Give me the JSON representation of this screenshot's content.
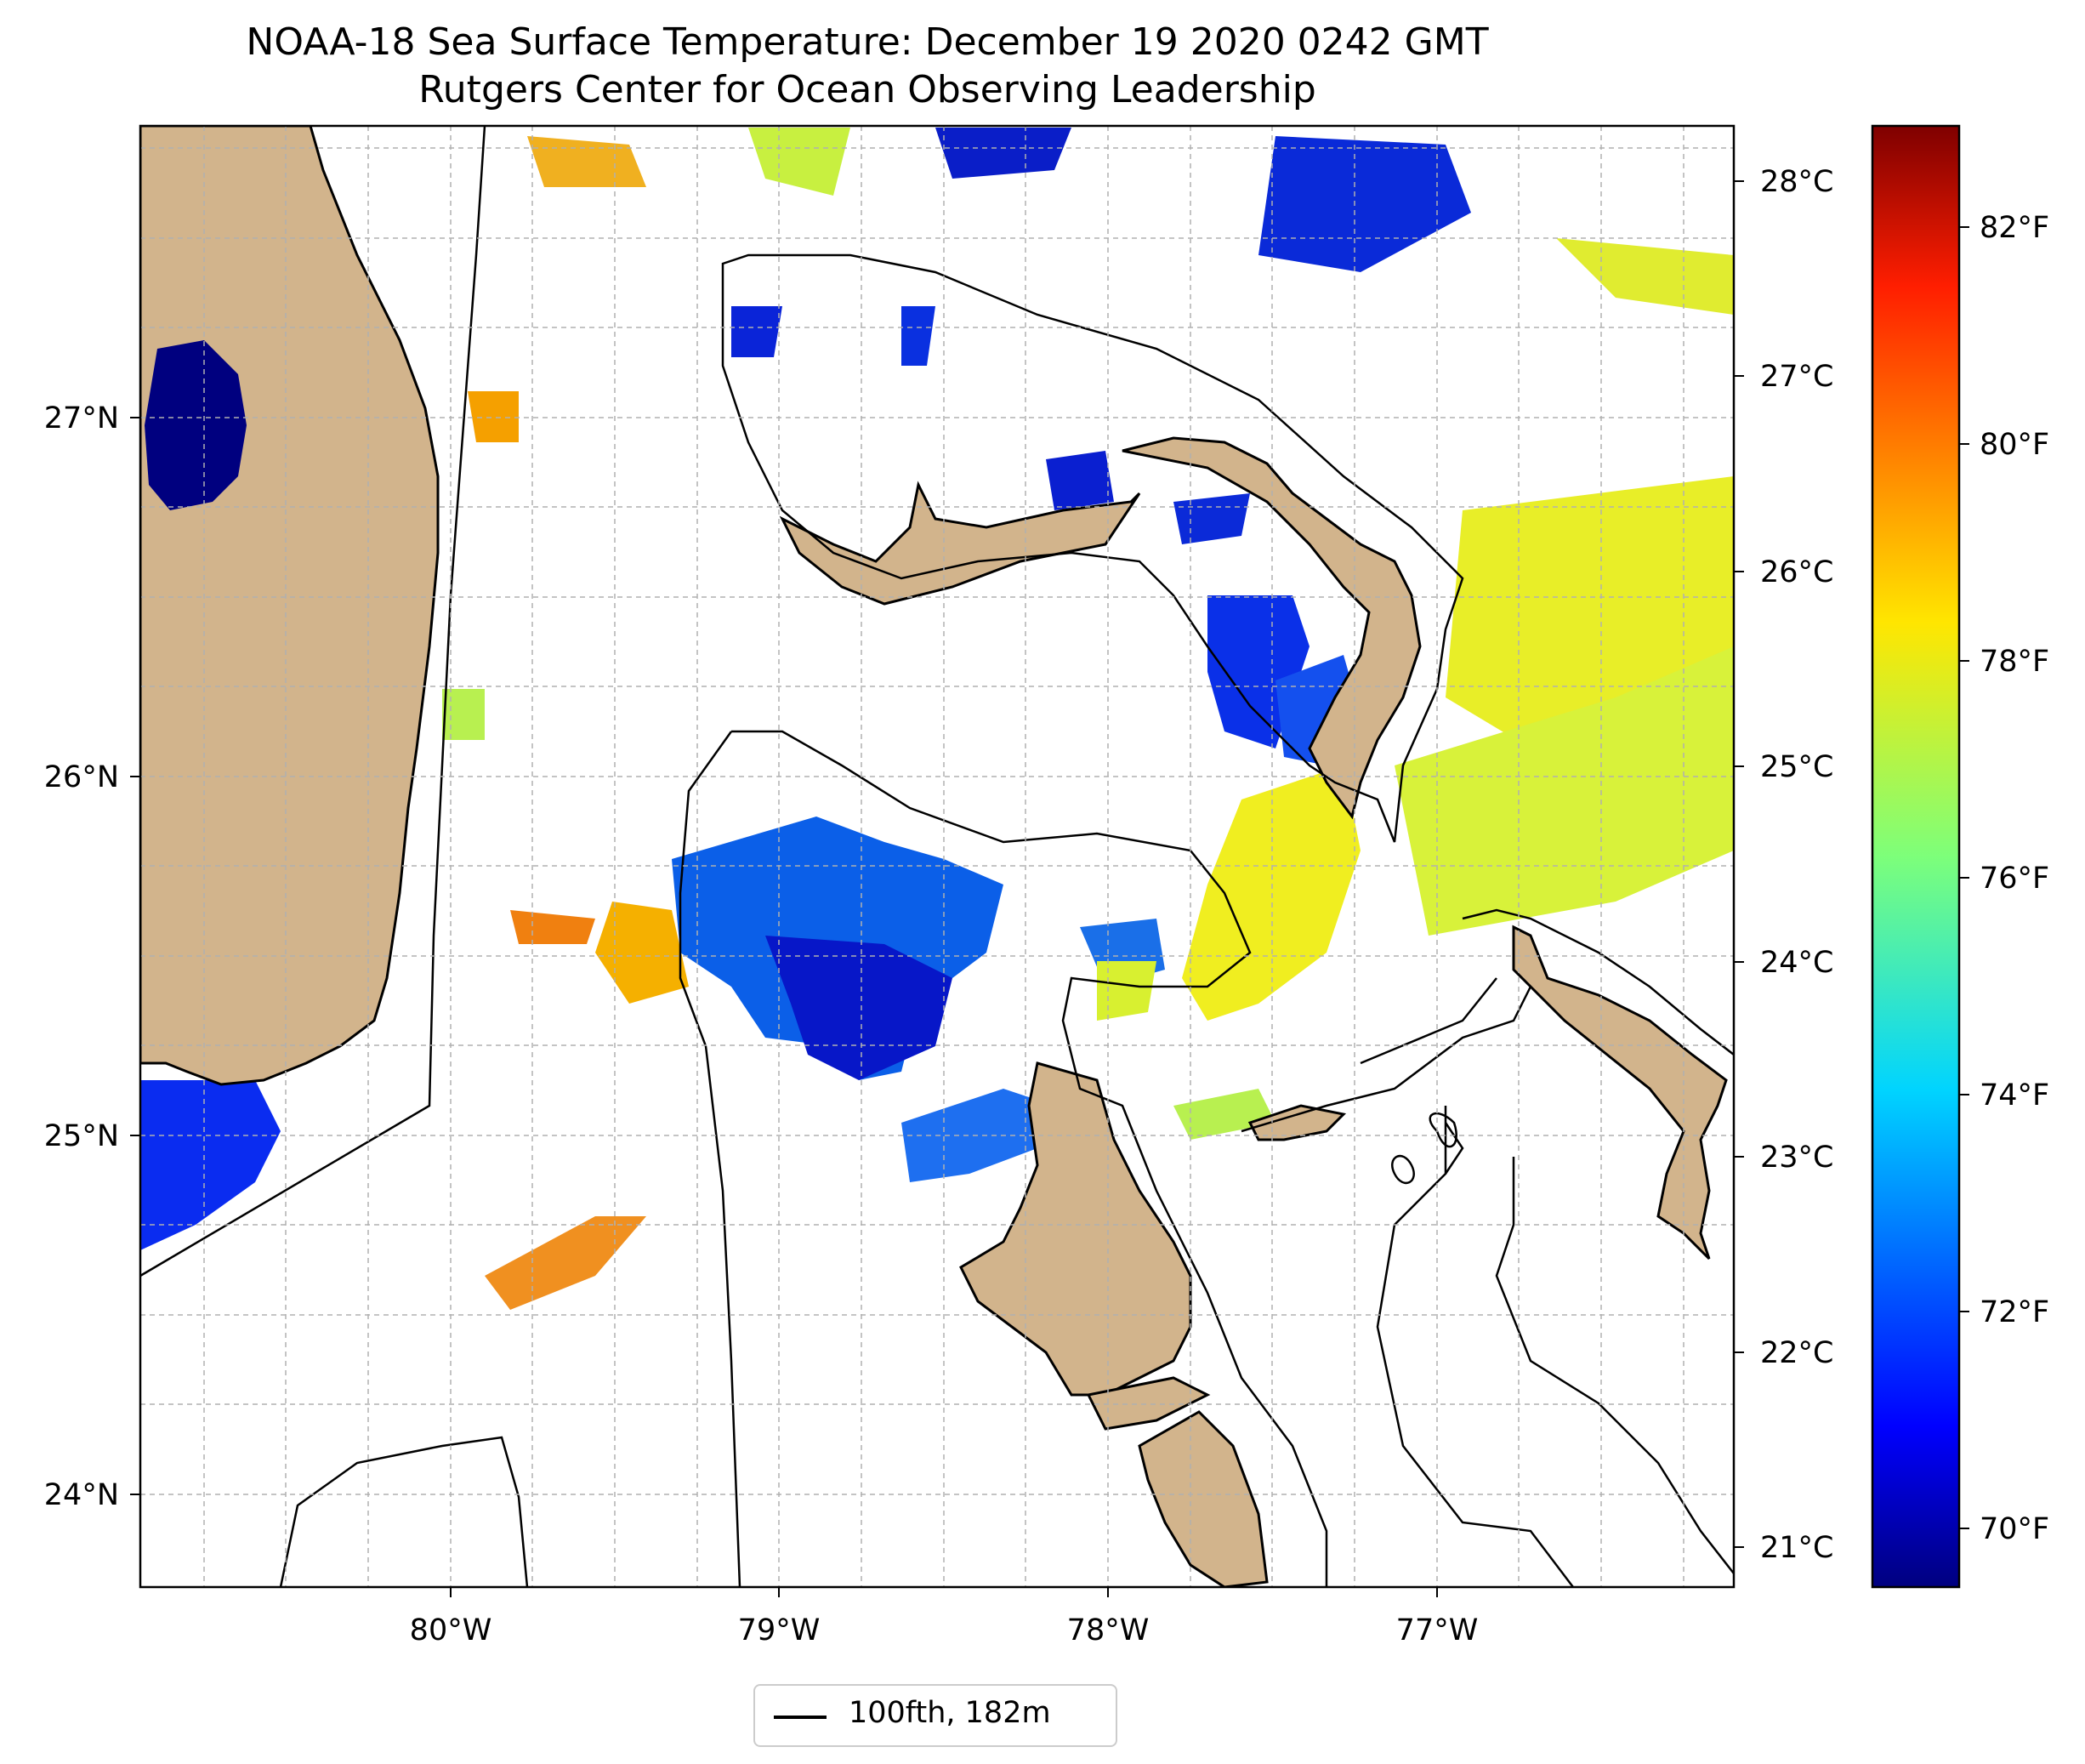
{
  "title": {
    "line1": "NOAA-18 Sea Surface Temperature: December 19 2020 0242 GMT",
    "line2": "Rutgers Center for Ocean Observing Leadership"
  },
  "map": {
    "projection": "lat-lon",
    "lon_range": [
      -80.95,
      -76.1
    ],
    "lat_range": [
      23.78,
      27.76
    ],
    "lon_ticks": [
      "80°W",
      "79°W",
      "78°W",
      "77°W"
    ],
    "lat_ticks": [
      "24°N",
      "25°N",
      "26°N",
      "27°N"
    ],
    "grid": true,
    "land_color": "#d2b48c",
    "ocean_color": "#ffffff"
  },
  "colorbar": {
    "colormap": "jet",
    "celsius_ticks": [
      "21°C",
      "22°C",
      "23°C",
      "24°C",
      "25°C",
      "26°C",
      "27°C",
      "28°C"
    ],
    "fahrenheit_ticks": [
      "70°F",
      "72°F",
      "74°F",
      "76°F",
      "78°F",
      "80°F",
      "82°F"
    ],
    "range_f": [
      69.2,
      83.2
    ]
  },
  "legend": {
    "entry": "100fth, 182m",
    "line_color": "#000000"
  }
}
